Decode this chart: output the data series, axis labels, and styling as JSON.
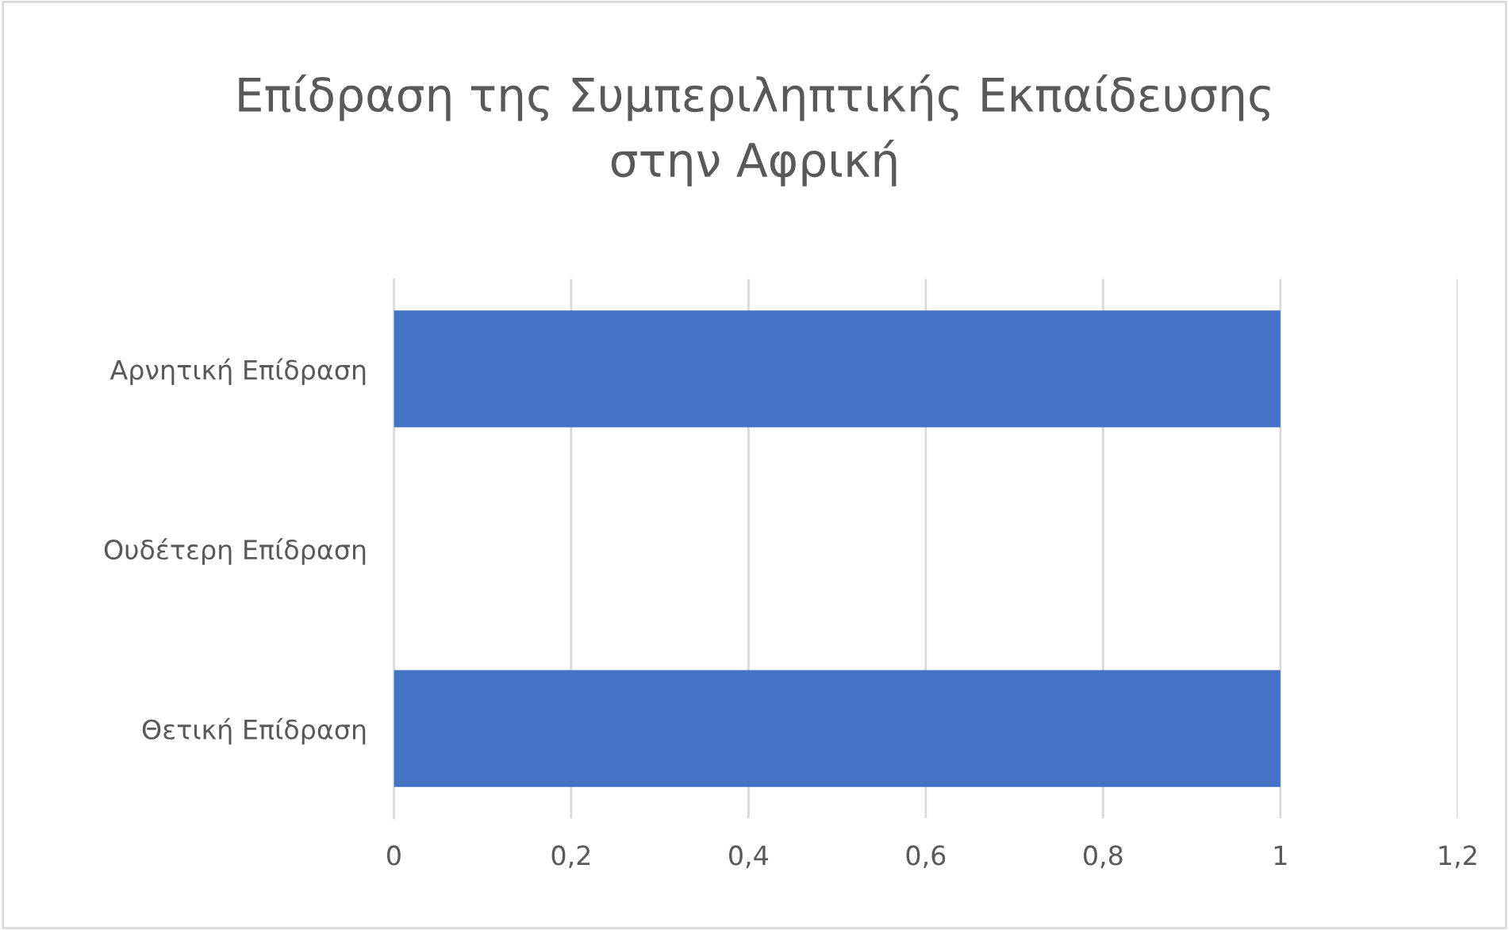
{
  "chart_data": {
    "type": "bar",
    "orientation": "horizontal",
    "title": "Επίδραση της Συμπεριληπτικής Εκπαίδευσης\nστην Αφρική",
    "categories": [
      "Αρνητική Επίδραση",
      "Ουδέτερη Επίδραση",
      "Θετική Επίδραση"
    ],
    "values": [
      1,
      0,
      1
    ],
    "color": "#4472c4",
    "xlim": [
      0,
      1.2
    ],
    "xticks": [
      0,
      {
        "value": 0.2,
        "label": "0,2"
      },
      {
        "value": 0.4,
        "label": "0,4"
      },
      {
        "value": 0.6,
        "label": "0,6"
      },
      {
        "value": 0.8,
        "label": "0,8"
      },
      1,
      {
        "value": 1.2,
        "label": "1,2"
      }
    ],
    "grid": "x",
    "legend": false
  }
}
